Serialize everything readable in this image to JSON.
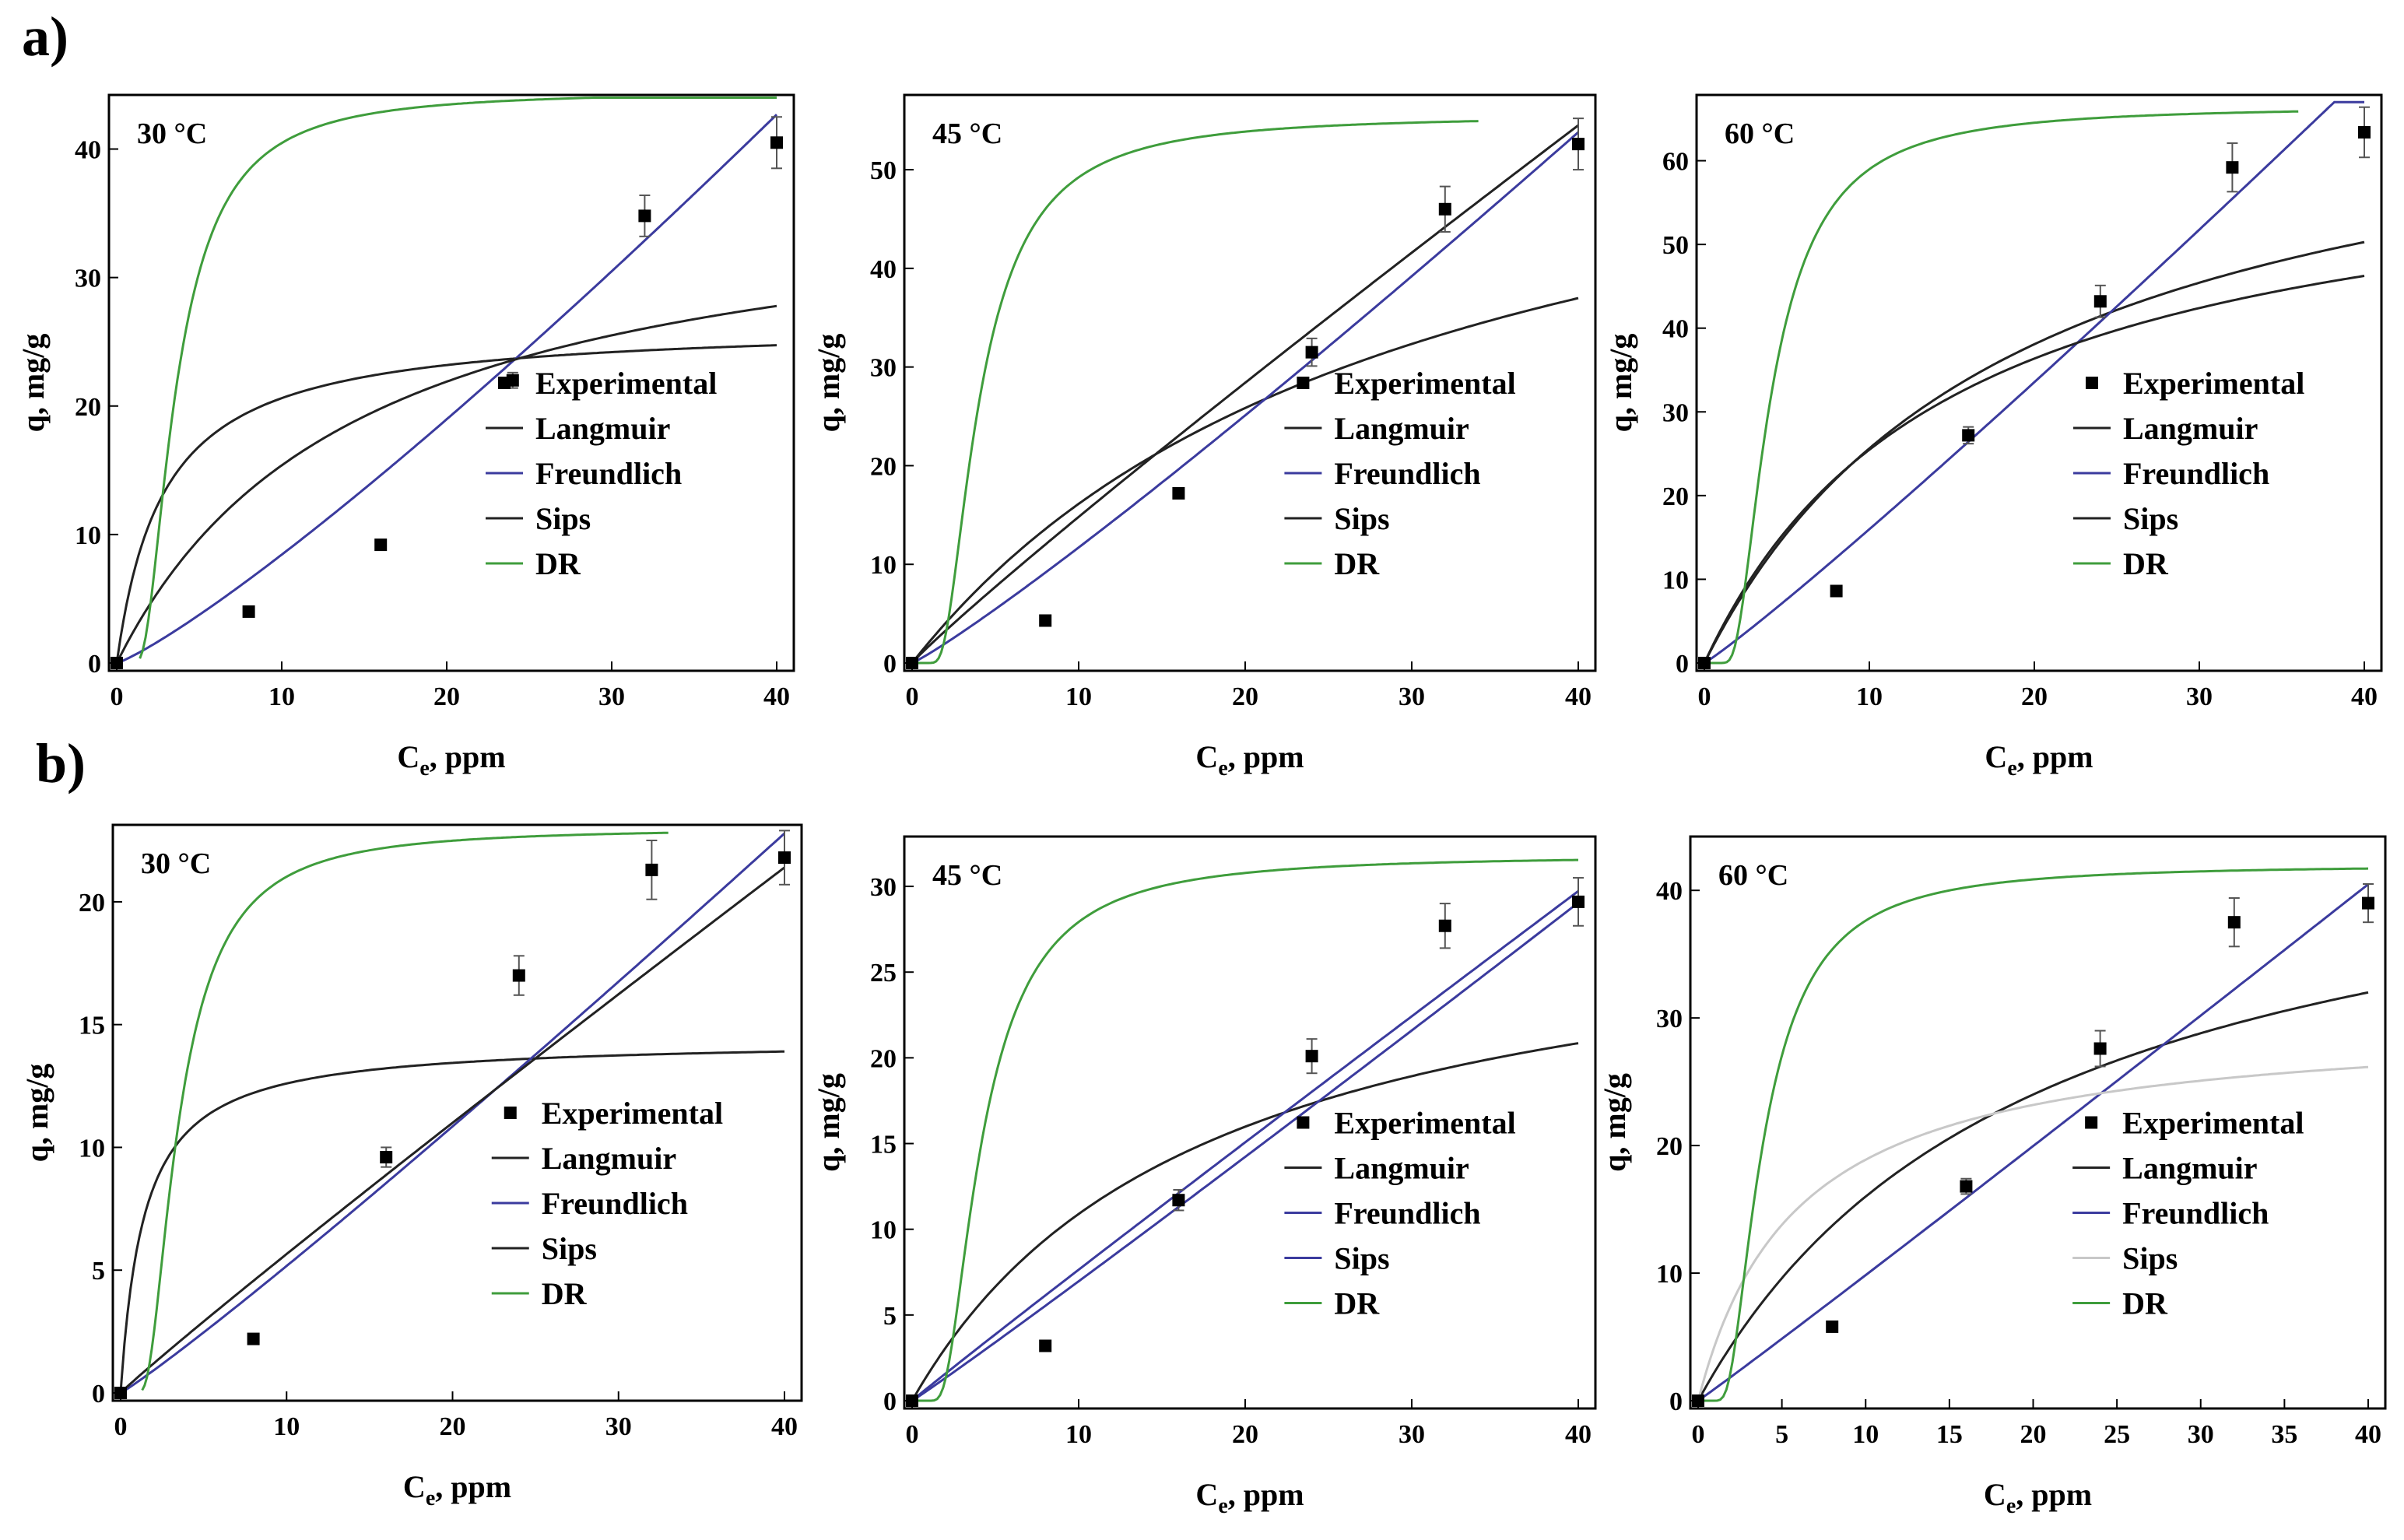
{
  "figure": {
    "row_labels": [
      "a)",
      "b)"
    ]
  },
  "chart_data": [
    {
      "type": "scatter",
      "row": "a",
      "title": "30 °C",
      "xlabel": "Ce, ppm",
      "ylabel": "q, mg/g",
      "xlim": [
        0,
        40
      ],
      "ylim": [
        0,
        43
      ],
      "xticks": [
        0,
        10,
        20,
        30,
        40
      ],
      "yticks": [
        0,
        10,
        20,
        30,
        40
      ],
      "experimental": {
        "name": "Experimental",
        "x": [
          0,
          8,
          16,
          24,
          32,
          40
        ],
        "y": [
          0,
          4,
          9.2,
          22,
          34.8,
          40.5
        ],
        "err": [
          0,
          0,
          0,
          0.6,
          1.6,
          2
        ]
      },
      "series": [
        {
          "name": "Langmuir",
          "model": "langmuir",
          "qm": 26.5,
          "K": 0.35,
          "color": "#222222"
        },
        {
          "name": "Freundlich",
          "model": "power",
          "a": 0.57,
          "b": 1.17,
          "color": "#3b3b9e"
        },
        {
          "name": "Sips",
          "model": "langmuir",
          "qm": 38.0,
          "K": 0.068,
          "color": "#222222"
        },
        {
          "name": "DR",
          "model": "dr",
          "qs": 44.5,
          "B": 9.5,
          "xmin": 1.4,
          "color": "#3f9d3c"
        }
      ]
    },
    {
      "type": "scatter",
      "row": "a",
      "title": "45 °C",
      "xlabel": "Ce, ppm",
      "ylabel": "q, mg/g",
      "xlim": [
        0,
        40
      ],
      "ylim": [
        0,
        56
      ],
      "xticks": [
        0,
        10,
        20,
        30,
        40
      ],
      "yticks": [
        0,
        10,
        20,
        30,
        40,
        50
      ],
      "experimental": {
        "name": "Experimental",
        "x": [
          0,
          8,
          16,
          24,
          32,
          40
        ],
        "y": [
          0,
          4.3,
          17.2,
          31.5,
          46,
          52.6
        ],
        "err": [
          0,
          0,
          0.5,
          1.4,
          2.3,
          2.6
        ]
      },
      "series": [
        {
          "name": "Langmuir",
          "model": "langmuir",
          "qm": 65.0,
          "K": 0.033,
          "color": "#222222"
        },
        {
          "name": "Freundlich",
          "model": "power",
          "a": 0.93,
          "b": 1.1,
          "color": "#3b3b9e"
        },
        {
          "name": "Sips",
          "model": "power",
          "a": 1.7,
          "b": 0.94,
          "color": "#222222"
        },
        {
          "name": "DR",
          "model": "dr",
          "qs": 55.5,
          "B": 12,
          "xmax": 34,
          "color": "#3f9d3c"
        }
      ]
    },
    {
      "type": "scatter",
      "row": "a",
      "title": "60 °C",
      "xlabel": "Ce, ppm",
      "ylabel": "q, mg/g",
      "xlim": [
        0,
        40
      ],
      "ylim": [
        0,
        66
      ],
      "xticks": [
        0,
        10,
        20,
        30,
        40
      ],
      "yticks": [
        0,
        10,
        20,
        30,
        40,
        50,
        60
      ],
      "experimental": {
        "name": "Experimental",
        "x": [
          0,
          8,
          16,
          24,
          32,
          40
        ],
        "y": [
          0,
          8.6,
          27.2,
          43.2,
          59.2,
          63.4
        ],
        "err": [
          0,
          0,
          1,
          1.9,
          2.9,
          3
        ]
      },
      "series": [
        {
          "name": "Langmuir",
          "model": "langmuir",
          "qm": 74.0,
          "K": 0.053,
          "color": "#222222"
        },
        {
          "name": "Freundlich",
          "model": "power",
          "a": 1.36,
          "b": 1.07,
          "color": "#3b3b9e"
        },
        {
          "name": "Sips",
          "model": "langmuir",
          "qm": 63.5,
          "K": 0.067,
          "color": "#222222"
        },
        {
          "name": "DR",
          "model": "dr",
          "qs": 66.5,
          "B": 12,
          "xmax": 36,
          "color": "#3f9d3c"
        }
      ]
    },
    {
      "type": "scatter",
      "row": "b",
      "title": "30 °C",
      "xlabel": "Ce, ppm",
      "ylabel": "q, mg/g",
      "xlim": [
        0,
        40
      ],
      "ylim": [
        0,
        22.5
      ],
      "xticks": [
        0,
        10,
        20,
        30,
        40
      ],
      "yticks": [
        0,
        5,
        10,
        15,
        20
      ],
      "experimental": {
        "name": "Experimental",
        "x": [
          0,
          8,
          16,
          24,
          32,
          40
        ],
        "y": [
          0,
          2.2,
          9.6,
          17,
          21.3,
          21.8
        ],
        "err": [
          0,
          0,
          0.4,
          0.8,
          1.2,
          1.1
        ]
      },
      "series": [
        {
          "name": "Langmuir",
          "model": "langmuir",
          "qm": 14.4,
          "K": 0.7,
          "color": "#222222"
        },
        {
          "name": "Freundlich",
          "model": "power",
          "a": 0.44,
          "b": 1.07,
          "color": "#3b3b9e"
        },
        {
          "name": "Sips",
          "model": "power",
          "a": 0.62,
          "b": 0.96,
          "color": "#222222"
        },
        {
          "name": "DR",
          "model": "dr",
          "qs": 23.0,
          "B": 9,
          "xmin": 1.3,
          "xmax": 33,
          "color": "#3f9d3c"
        }
      ]
    },
    {
      "type": "scatter",
      "row": "b",
      "title": "45 °C",
      "xlabel": "Ce, ppm",
      "ylabel": "q, mg/g",
      "xlim": [
        0,
        40
      ],
      "ylim": [
        0,
        32
      ],
      "xticks": [
        0,
        10,
        20,
        30,
        40
      ],
      "yticks": [
        0,
        5,
        10,
        15,
        20,
        25,
        30
      ],
      "experimental": {
        "name": "Experimental",
        "x": [
          0,
          8,
          16,
          24,
          32,
          40
        ],
        "y": [
          0,
          3.2,
          11.7,
          20.1,
          27.7,
          29.1
        ],
        "err": [
          0,
          0,
          0.6,
          1,
          1.3,
          1.4
        ]
      },
      "series": [
        {
          "name": "Langmuir",
          "model": "langmuir",
          "qm": 30.0,
          "K": 0.057,
          "color": "#222222"
        },
        {
          "name": "Freundlich",
          "model": "power",
          "a": 0.65,
          "b": 1.03,
          "color": "#3b3b9e"
        },
        {
          "name": "Sips",
          "model": "power",
          "a": 0.8,
          "b": 0.98,
          "color": "#3b3b9e"
        },
        {
          "name": "DR",
          "model": "dr",
          "qs": 31.8,
          "B": 13,
          "color": "#3f9d3c"
        }
      ]
    },
    {
      "type": "scatter",
      "row": "b",
      "title": "60 °C",
      "xlabel": "Ce, ppm",
      "ylabel": "q, mg/g",
      "xlim": [
        0,
        40
      ],
      "ylim": [
        0,
        43
      ],
      "xticks": [
        0,
        5,
        10,
        15,
        20,
        25,
        30,
        35,
        40
      ],
      "yticks": [
        0,
        10,
        20,
        30,
        40
      ],
      "experimental": {
        "name": "Experimental",
        "x": [
          0,
          8,
          16,
          24,
          32,
          40
        ],
        "y": [
          0,
          5.8,
          16.8,
          27.6,
          37.5,
          39
        ],
        "err": [
          0,
          0,
          0.6,
          1.4,
          1.9,
          1.5
        ]
      },
      "series": [
        {
          "name": "Langmuir",
          "model": "langmuir",
          "qm": 48.0,
          "K": 0.05,
          "color": "#222222"
        },
        {
          "name": "Freundlich",
          "model": "power",
          "a": 0.94,
          "b": 1.02,
          "color": "#3b3b9e"
        },
        {
          "name": "Sips",
          "model": "langmuir",
          "qm": 30.0,
          "K": 0.17,
          "color": "#c8c8c8"
        },
        {
          "name": "DR",
          "model": "dr",
          "qs": 42.0,
          "B": 11,
          "color": "#3f9d3c"
        }
      ]
    }
  ]
}
